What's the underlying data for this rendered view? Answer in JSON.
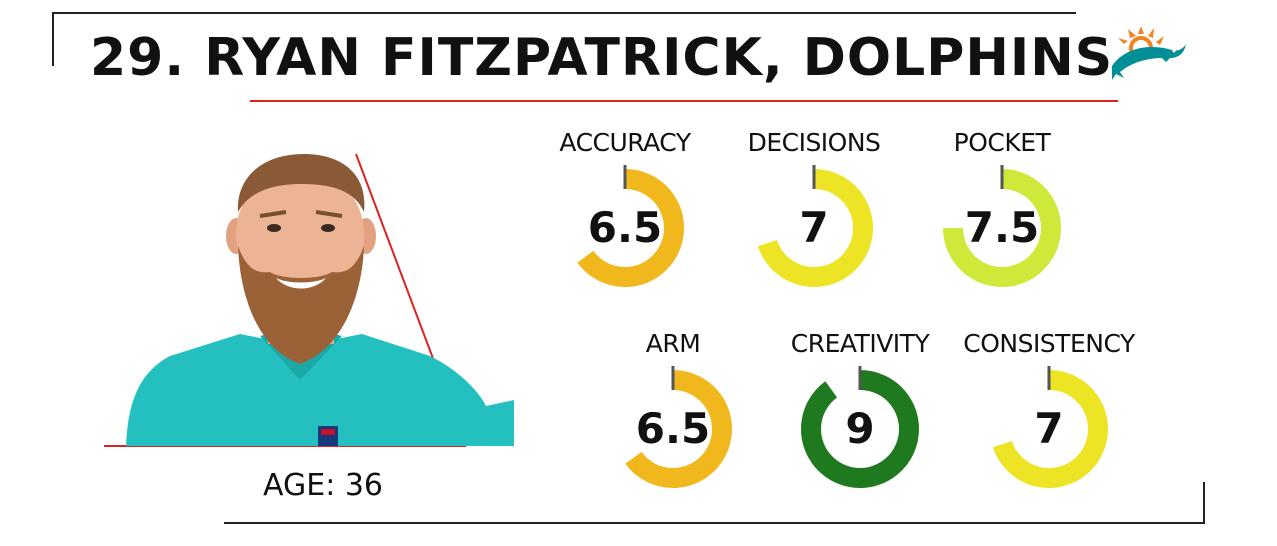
{
  "title": "29. RYAN FITZPATRICK, DOLPHINS",
  "age_label": "AGE: 36",
  "colors": {
    "accent_red": "#dd2222",
    "frame": "#222222",
    "dolphins_aqua": "#008e97",
    "dolphins_orange": "#f58220"
  },
  "logo": {
    "icon": "dolphins-logo-icon"
  },
  "metrics": [
    {
      "label": "ACCURACY",
      "value": "6.5",
      "score": 6.5,
      "color": "#f0b81c"
    },
    {
      "label": "DECISIONS",
      "value": "7",
      "score": 7,
      "color": "#ece424"
    },
    {
      "label": "POCKET",
      "value": "7.5",
      "score": 7.5,
      "color": "#cfe83a"
    },
    {
      "label": "ARM",
      "value": "6.5",
      "score": 6.5,
      "color": "#f0b81c"
    },
    {
      "label": "CREATIVITY",
      "value": "9",
      "score": 9,
      "color": "#1f7a1f"
    },
    {
      "label": "CONSISTENCY",
      "value": "7",
      "score": 7,
      "color": "#ece424"
    }
  ],
  "scale_max": 10
}
